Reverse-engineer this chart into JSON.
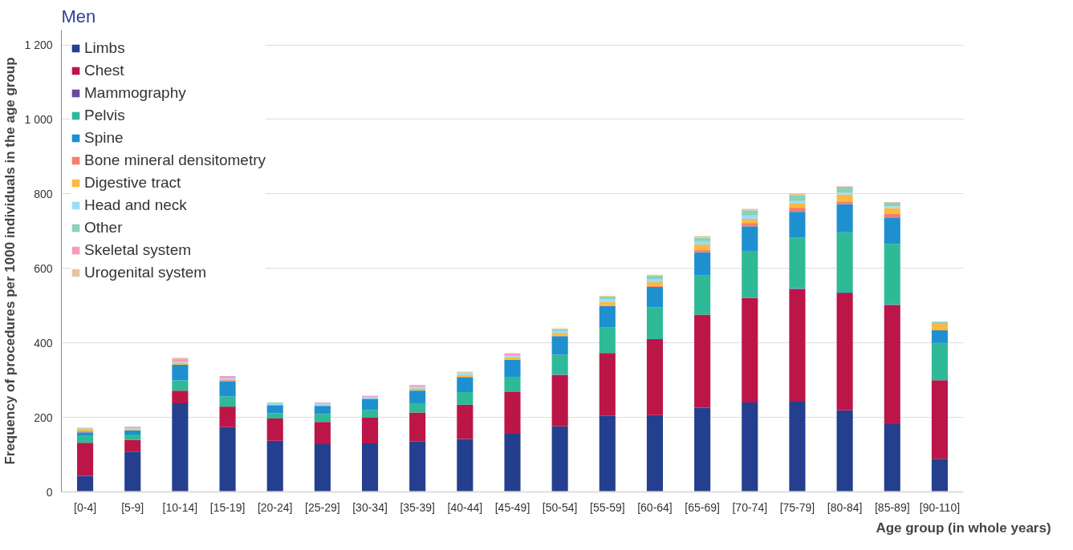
{
  "chart_data": {
    "type": "bar",
    "stacked": true,
    "title": "Men",
    "xlabel": "Age group (in whole years)",
    "ylabel": "Frequency of procedures per 1000 individuals in the age group",
    "categories": [
      "[0-4]",
      "[5-9]",
      "[10-14]",
      "[15-19]",
      "[20-24]",
      "[25-29]",
      "[30-34]",
      "[35-39]",
      "[40-44]",
      "[45-49]",
      "[50-54]",
      "[55-59]",
      "[60-64]",
      "[65-69]",
      "[70-74]",
      "[75-79]",
      "[80-84]",
      "[85-89]",
      "[90-110]"
    ],
    "ylim": [
      0,
      1240
    ],
    "yticks": [
      0,
      {
        "value": 200,
        "label": "200"
      },
      400,
      600,
      800,
      {
        "value": 1000,
        "label": "1 000"
      },
      {
        "value": 1200,
        "label": "1 200"
      }
    ],
    "grid": "y",
    "legend": "top left",
    "series": [
      {
        "name": "Limbs",
        "color": "#243f8e",
        "values": [
          43,
          108,
          238,
          174,
          137,
          128,
          130,
          135,
          142,
          156,
          176,
          204,
          206,
          226,
          240,
          242,
          219,
          182,
          89
        ]
      },
      {
        "name": "Chest",
        "color": "#bc1548",
        "values": [
          89,
          32,
          34,
          55,
          60,
          60,
          69,
          78,
          92,
          112,
          138,
          169,
          204,
          250,
          281,
          302,
          314,
          319,
          211
        ]
      },
      {
        "name": "Mammography",
        "color": "#6a4a9e",
        "values": [
          0,
          0,
          0,
          0,
          0,
          0,
          0,
          0,
          0,
          0,
          1,
          0,
          0,
          0,
          0,
          2,
          2,
          2,
          0
        ]
      },
      {
        "name": "Pelvis",
        "color": "#2eba96",
        "values": [
          18,
          14,
          27,
          27,
          14,
          21,
          21,
          25,
          34,
          41,
          53,
          69,
          85,
          105,
          126,
          137,
          162,
          163,
          100
        ]
      },
      {
        "name": "Spine",
        "color": "#1e90d0",
        "values": [
          10,
          11,
          43,
          41,
          22,
          22,
          30,
          34,
          39,
          46,
          50,
          57,
          55,
          62,
          66,
          69,
          76,
          71,
          34
        ]
      },
      {
        "name": "Bone mineral densitometry",
        "color": "#f47f6b",
        "values": [
          3,
          0,
          0,
          3,
          null,
          0,
          0,
          0,
          2,
          0,
          2,
          2,
          2,
          7,
          9,
          11,
          7,
          9,
          0
        ]
      },
      {
        "name": "Digestive tract",
        "color": "#fdb93f",
        "values": [
          7,
          2,
          5,
          0,
          0,
          2,
          null,
          5,
          5,
          7,
          7,
          9,
          11,
          14,
          11,
          11,
          18,
          16,
          17
        ]
      },
      {
        "name": "Head and neck",
        "color": "#9ddcf6",
        "values": [
          2,
          3,
          3,
          5,
          5,
          5,
          5,
          5,
          5,
          5,
          5,
          7,
          7,
          9,
          9,
          7,
          5,
          5,
          0
        ]
      },
      {
        "name": "Other",
        "color": "#8bd1b8",
        "values": [
          1,
          1,
          null,
          null,
          2,
          0,
          0,
          0,
          2,
          0,
          5,
          7,
          11,
          9,
          14,
          16,
          14,
          9,
          6
        ]
      },
      {
        "name": "Skeletal system",
        "color": "#f49cbf",
        "values": [
          null,
          4,
          8,
          6,
          0,
          2,
          3,
          5,
          0,
          5,
          0,
          0,
          0,
          0,
          0,
          0,
          2,
          0,
          0
        ]
      },
      {
        "name": "Urogenital system",
        "color": "#e3c6a0",
        "values": [
          0,
          0,
          2,
          0,
          0,
          0,
          0,
          0,
          2,
          0,
          2,
          2,
          2,
          5,
          4,
          5,
          2,
          2,
          0
        ]
      }
    ]
  }
}
